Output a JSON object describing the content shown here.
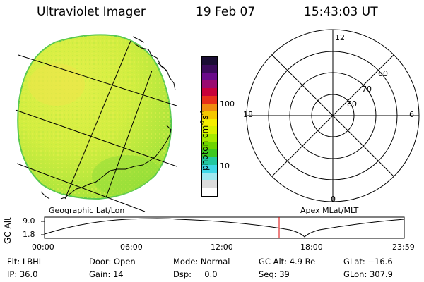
{
  "header": {
    "instrument": "Ultraviolet Imager",
    "date": "19 Feb 07",
    "time": "15:43:03 UT"
  },
  "globe": {
    "label": "Geographic Lat/Lon",
    "fill_color": "#c9f04a"
  },
  "colorbar": {
    "unit_main": "photon cm",
    "unit_exp1": "-2",
    "unit_s": "s",
    "unit_exp2": "-1",
    "tick_100": "100",
    "tick_10": "10",
    "colors": [
      "#1a0d33",
      "#3b0a5a",
      "#6a0a8a",
      "#9a0a70",
      "#c8003a",
      "#e8301a",
      "#f08c10",
      "#f5c800",
      "#f5ee00",
      "#d9f000",
      "#a6ea00",
      "#6ed400",
      "#3ec820",
      "#22c8a0",
      "#40d8e8",
      "#a0e8f0",
      "#dcdcdc",
      "#ffffff"
    ]
  },
  "polar": {
    "label": "Apex MLat/MLT",
    "mlt_top": "12",
    "mlt_left": "18",
    "mlt_right": "6",
    "mlt_bottom": "0",
    "lat_60": "60",
    "lat_70": "70",
    "lat_80": "80"
  },
  "altitude_plot": {
    "ylabel": "GC Alt",
    "y_top": "9.0",
    "y_bottom": "1.8",
    "x_ticks": [
      "00:00",
      "06:00",
      "12:00",
      "18:00",
      "23:59"
    ],
    "marker_color": "#dd0000"
  },
  "info": {
    "flt": "Flt: LBHL",
    "ip": "IP: 36.0",
    "door": "Door: Open",
    "gain": "Gain: 14",
    "mode": "Mode: Normal",
    "dsp": "Dsp:     0.0",
    "gc_alt": "GC Alt: 4.9 Re",
    "seq": "Seq: 39",
    "glat": "GLat: −16.6",
    "glon": "GLon: 307.9"
  }
}
